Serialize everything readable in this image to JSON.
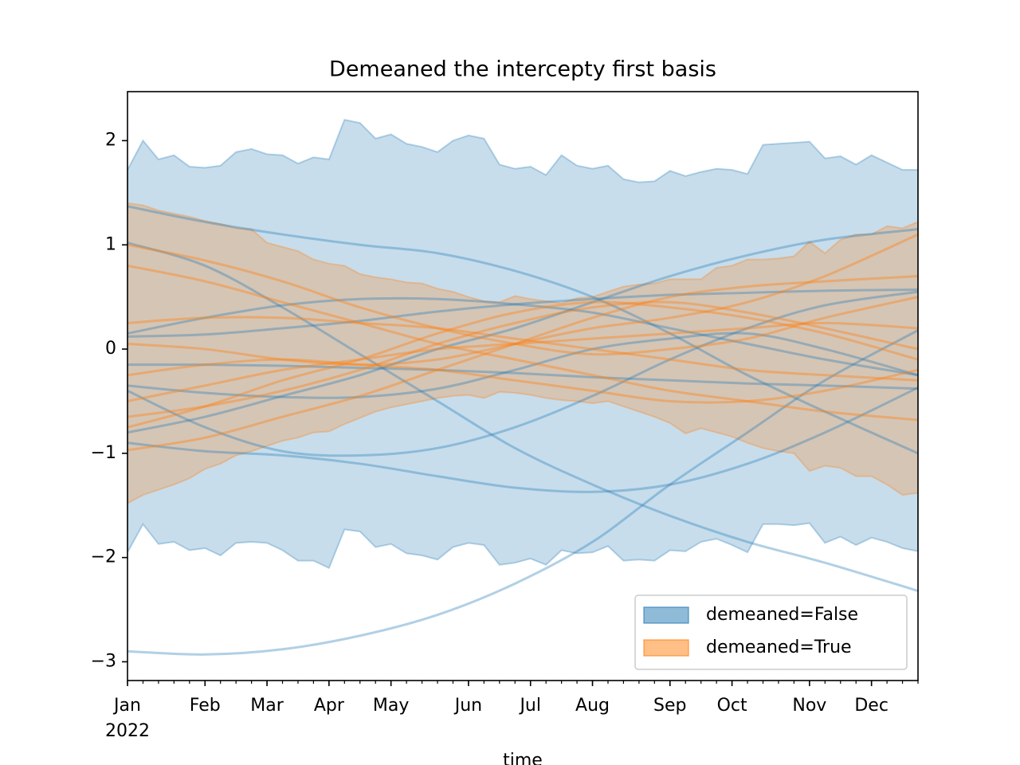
{
  "chart_data": {
    "type": "line",
    "title": "Demeaned the intercepty first basis",
    "xlabel": "time",
    "x_year": "2022",
    "xlim": [
      0,
      51
    ],
    "xticks": [
      {
        "value": 0,
        "label": "Jan"
      },
      {
        "value": 5,
        "label": "Feb"
      },
      {
        "value": 9,
        "label": "Mar"
      },
      {
        "value": 13,
        "label": "Apr"
      },
      {
        "value": 17,
        "label": "May"
      },
      {
        "value": 22,
        "label": "Jun"
      },
      {
        "value": 26,
        "label": "Jul"
      },
      {
        "value": 30,
        "label": "Aug"
      },
      {
        "value": 35,
        "label": "Sep"
      },
      {
        "value": 39,
        "label": "Oct"
      },
      {
        "value": 44,
        "label": "Nov"
      },
      {
        "value": 48,
        "label": "Dec"
      }
    ],
    "ylim": [
      -3.18,
      2.47
    ],
    "yticks": [
      {
        "value": -3,
        "label": "−3"
      },
      {
        "value": -2,
        "label": "−2"
      },
      {
        "value": -1,
        "label": "−1"
      },
      0,
      1,
      2
    ],
    "grid": false,
    "legend": "lower right",
    "bands": [
      {
        "name": "demeaned=False",
        "color": "#1f77b4",
        "alpha": 0.25,
        "x": [
          0,
          1,
          2,
          3,
          4,
          5,
          6,
          7,
          8,
          9,
          10,
          11,
          12,
          13,
          14,
          15,
          16,
          17,
          18,
          19,
          20,
          21,
          22,
          23,
          24,
          25,
          26,
          27,
          28,
          29,
          30,
          31,
          32,
          33,
          34,
          35,
          36,
          37,
          38,
          39,
          40,
          41,
          42,
          43,
          44,
          45,
          46,
          47,
          48,
          49,
          50,
          51
        ],
        "upper": [
          1.72,
          2.0,
          1.82,
          1.86,
          1.75,
          1.74,
          1.76,
          1.89,
          1.92,
          1.87,
          1.86,
          1.78,
          1.84,
          1.82,
          2.2,
          2.17,
          2.02,
          2.06,
          1.97,
          1.94,
          1.89,
          2.0,
          2.05,
          2.02,
          1.77,
          1.73,
          1.75,
          1.67,
          1.86,
          1.76,
          1.73,
          1.76,
          1.63,
          1.6,
          1.61,
          1.71,
          1.66,
          1.7,
          1.73,
          1.72,
          1.68,
          1.96,
          1.97,
          1.98,
          1.99,
          1.83,
          1.85,
          1.77,
          1.86,
          1.79,
          1.72,
          1.72
        ],
        "lower": [
          -1.95,
          -1.68,
          -1.87,
          -1.85,
          -1.93,
          -1.91,
          -1.98,
          -1.86,
          -1.85,
          -1.86,
          -1.93,
          -2.03,
          -2.03,
          -2.1,
          -1.73,
          -1.75,
          -1.9,
          -1.87,
          -1.96,
          -1.98,
          -2.02,
          -1.9,
          -1.86,
          -1.88,
          -2.07,
          -2.05,
          -2.01,
          -2.07,
          -1.93,
          -1.96,
          -1.95,
          -1.89,
          -2.03,
          -2.02,
          -2.03,
          -1.93,
          -1.94,
          -1.85,
          -1.82,
          -1.88,
          -1.95,
          -1.68,
          -1.68,
          -1.69,
          -1.67,
          -1.86,
          -1.8,
          -1.88,
          -1.81,
          -1.85,
          -1.91,
          -1.94
        ]
      },
      {
        "name": "demeaned=True",
        "color": "#ff7f0e",
        "alpha": 0.25,
        "x": [
          0,
          1,
          2,
          3,
          4,
          5,
          6,
          7,
          8,
          9,
          10,
          11,
          12,
          13,
          14,
          15,
          16,
          17,
          18,
          19,
          20,
          21,
          22,
          23,
          24,
          25,
          26,
          27,
          28,
          29,
          30,
          31,
          32,
          33,
          34,
          35,
          36,
          37,
          38,
          39,
          40,
          41,
          42,
          43,
          44,
          45,
          46,
          47,
          48,
          49,
          50,
          51
        ],
        "upper": [
          1.4,
          1.38,
          1.33,
          1.3,
          1.27,
          1.23,
          1.2,
          1.16,
          1.15,
          1.02,
          0.98,
          0.94,
          0.86,
          0.82,
          0.8,
          0.72,
          0.69,
          0.67,
          0.64,
          0.63,
          0.58,
          0.55,
          0.5,
          0.46,
          0.45,
          0.51,
          0.48,
          0.46,
          0.44,
          0.49,
          0.5,
          0.55,
          0.6,
          0.62,
          0.63,
          0.67,
          0.67,
          0.67,
          0.78,
          0.8,
          0.86,
          0.86,
          0.87,
          0.89,
          1.03,
          0.92,
          1.05,
          1.1,
          1.1,
          1.18,
          1.16,
          1.22
        ],
        "lower": [
          -1.48,
          -1.4,
          -1.35,
          -1.3,
          -1.24,
          -1.15,
          -1.1,
          -1.02,
          -0.98,
          -0.93,
          -0.88,
          -0.85,
          -0.8,
          -0.79,
          -0.72,
          -0.66,
          -0.6,
          -0.56,
          -0.53,
          -0.5,
          -0.47,
          -0.45,
          -0.44,
          -0.47,
          -0.41,
          -0.42,
          -0.44,
          -0.47,
          -0.49,
          -0.5,
          -0.52,
          -0.5,
          -0.55,
          -0.6,
          -0.65,
          -0.71,
          -0.81,
          -0.76,
          -0.8,
          -0.84,
          -0.9,
          -0.95,
          -0.98,
          -1.0,
          -1.17,
          -1.12,
          -1.14,
          -1.22,
          -1.22,
          -1.3,
          -1.4,
          -1.38
        ]
      }
    ],
    "series": [
      {
        "color": "#1f77b4",
        "opacity": 0.35,
        "x": [
          0,
          5,
          10,
          15,
          20,
          25,
          30,
          35,
          40,
          45,
          51
        ],
        "values": [
          1.37,
          1.22,
          1.1,
          1.0,
          0.92,
          0.75,
          0.5,
          0.15,
          -0.25,
          -0.6,
          -1.0
        ]
      },
      {
        "color": "#1f77b4",
        "opacity": 0.35,
        "x": [
          0,
          5,
          10,
          15,
          20,
          25,
          30,
          35,
          40,
          45,
          51
        ],
        "values": [
          1.02,
          0.8,
          0.4,
          -0.05,
          -0.5,
          -0.95,
          -1.3,
          -1.6,
          -1.85,
          -2.05,
          -2.32
        ]
      },
      {
        "color": "#1f77b4",
        "opacity": 0.35,
        "x": [
          0,
          5,
          10,
          15,
          20,
          25,
          30,
          35,
          40,
          45,
          51
        ],
        "values": [
          -2.9,
          -2.93,
          -2.88,
          -2.75,
          -2.55,
          -2.25,
          -1.85,
          -1.3,
          -0.8,
          -0.3,
          0.18
        ]
      },
      {
        "color": "#1f77b4",
        "opacity": 0.35,
        "x": [
          0,
          5,
          10,
          15,
          20,
          25,
          30,
          35,
          40,
          45,
          51
        ],
        "values": [
          -0.9,
          -0.98,
          -1.02,
          -1.1,
          -1.22,
          -1.33,
          -1.37,
          -1.3,
          -1.1,
          -0.8,
          -0.37
        ]
      },
      {
        "color": "#1f77b4",
        "opacity": 0.35,
        "x": [
          0,
          5,
          10,
          15,
          20,
          25,
          30,
          35,
          40,
          45,
          51
        ],
        "values": [
          -0.8,
          -0.65,
          -0.45,
          -0.25,
          0.0,
          0.2,
          0.45,
          0.7,
          0.9,
          1.05,
          1.15
        ]
      },
      {
        "color": "#1f77b4",
        "opacity": 0.35,
        "x": [
          0,
          5,
          10,
          15,
          20,
          25,
          30,
          35,
          40,
          45,
          51
        ],
        "values": [
          0.12,
          0.14,
          0.2,
          0.27,
          0.36,
          0.43,
          0.48,
          0.52,
          0.54,
          0.56,
          0.57
        ]
      },
      {
        "color": "#1f77b4",
        "opacity": 0.35,
        "x": [
          0,
          5,
          10,
          15,
          20,
          25,
          30,
          35,
          40,
          45,
          51
        ],
        "values": [
          0.15,
          0.3,
          0.42,
          0.48,
          0.48,
          0.43,
          0.35,
          0.2,
          0.05,
          -0.1,
          -0.25
        ]
      },
      {
        "color": "#1f77b4",
        "opacity": 0.35,
        "x": [
          0,
          5,
          10,
          15,
          20,
          25,
          30,
          35,
          40,
          45,
          51
        ],
        "values": [
          -0.15,
          -0.15,
          -0.16,
          -0.18,
          -0.2,
          -0.23,
          -0.27,
          -0.3,
          -0.33,
          -0.35,
          -0.38
        ]
      },
      {
        "color": "#1f77b4",
        "opacity": 0.35,
        "x": [
          0,
          5,
          10,
          15,
          20,
          25,
          30,
          35,
          40,
          45,
          51
        ],
        "values": [
          -0.4,
          -0.75,
          -0.98,
          -1.02,
          -0.95,
          -0.75,
          -0.45,
          -0.1,
          0.2,
          0.42,
          0.55
        ]
      },
      {
        "color": "#1f77b4",
        "opacity": 0.35,
        "x": [
          0,
          5,
          10,
          15,
          20,
          25,
          30,
          35,
          40,
          45,
          51
        ],
        "values": [
          -0.35,
          -0.42,
          -0.46,
          -0.46,
          -0.38,
          -0.2,
          0.0,
          0.1,
          0.15,
          0.0,
          -0.25
        ]
      },
      {
        "color": "#ff7f0e",
        "opacity": 0.4,
        "x": [
          0,
          5,
          10,
          15,
          20,
          25,
          30,
          35,
          40,
          45,
          51
        ],
        "values": [
          0.8,
          0.65,
          0.45,
          0.25,
          0.05,
          -0.1,
          -0.25,
          -0.4,
          -0.5,
          -0.6,
          -0.68
        ]
      },
      {
        "color": "#ff7f0e",
        "opacity": 0.4,
        "x": [
          0,
          5,
          10,
          15,
          20,
          25,
          30,
          35,
          40,
          45,
          51
        ],
        "values": [
          0.25,
          0.3,
          0.3,
          0.25,
          0.2,
          0.1,
          0.0,
          -0.1,
          -0.2,
          -0.25,
          -0.3
        ]
      },
      {
        "color": "#ff7f0e",
        "opacity": 0.4,
        "x": [
          0,
          5,
          10,
          15,
          20,
          25,
          30,
          35,
          40,
          45,
          51
        ],
        "values": [
          -0.97,
          -0.85,
          -0.65,
          -0.45,
          -0.2,
          0.05,
          0.3,
          0.5,
          0.6,
          0.65,
          0.7
        ]
      },
      {
        "color": "#ff7f0e",
        "opacity": 0.4,
        "x": [
          0,
          5,
          10,
          15,
          20,
          25,
          30,
          35,
          40,
          45,
          51
        ],
        "values": [
          -0.5,
          -0.35,
          -0.2,
          -0.1,
          0.0,
          0.05,
          0.1,
          0.15,
          0.2,
          0.25,
          0.2
        ]
      },
      {
        "color": "#ff7f0e",
        "opacity": 0.4,
        "x": [
          0,
          5,
          10,
          15,
          20,
          25,
          30,
          35,
          40,
          45,
          51
        ],
        "values": [
          -0.65,
          -0.55,
          -0.4,
          -0.2,
          0.05,
          0.25,
          0.4,
          0.45,
          0.35,
          0.2,
          0.0
        ]
      },
      {
        "color": "#ff7f0e",
        "opacity": 0.4,
        "x": [
          0,
          5,
          10,
          15,
          20,
          25,
          30,
          35,
          40,
          45,
          51
        ],
        "values": [
          1.0,
          0.85,
          0.65,
          0.4,
          0.2,
          0.05,
          -0.05,
          0.0,
          0.1,
          0.3,
          0.5
        ]
      },
      {
        "color": "#ff7f0e",
        "opacity": 0.4,
        "x": [
          0,
          5,
          10,
          15,
          20,
          25,
          30,
          35,
          40,
          45,
          51
        ],
        "values": [
          -0.25,
          -0.15,
          -0.1,
          -0.15,
          -0.2,
          -0.3,
          -0.4,
          -0.5,
          -0.5,
          -0.4,
          -0.2
        ]
      },
      {
        "color": "#ff7f0e",
        "opacity": 0.4,
        "x": [
          0,
          5,
          10,
          15,
          20,
          25,
          30,
          35,
          40,
          45,
          51
        ],
        "values": [
          0.05,
          0.0,
          -0.1,
          -0.15,
          -0.1,
          0.05,
          0.2,
          0.3,
          0.45,
          0.7,
          1.1
        ]
      },
      {
        "color": "#ff7f0e",
        "opacity": 0.4,
        "x": [
          0,
          5,
          10,
          15,
          20,
          25,
          30,
          35,
          40,
          45,
          51
        ],
        "values": [
          -0.75,
          -0.55,
          -0.3,
          -0.1,
          0.15,
          0.35,
          0.45,
          0.4,
          0.3,
          0.15,
          -0.1
        ]
      }
    ]
  }
}
